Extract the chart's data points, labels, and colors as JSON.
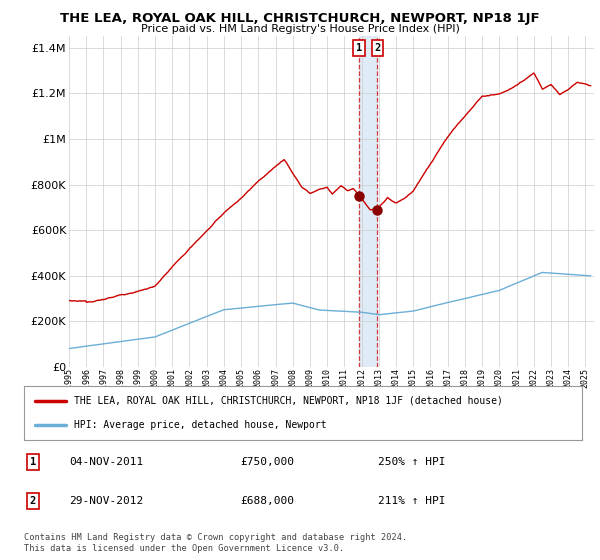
{
  "title": "THE LEA, ROYAL OAK HILL, CHRISTCHURCH, NEWPORT, NP18 1JF",
  "subtitle": "Price paid vs. HM Land Registry's House Price Index (HPI)",
  "legend_line1": "THE LEA, ROYAL OAK HILL, CHRISTCHURCH, NEWPORT, NP18 1JF (detached house)",
  "legend_line2": "HPI: Average price, detached house, Newport",
  "annotation1_date": "04-NOV-2011",
  "annotation1_price": "£750,000",
  "annotation1_hpi": "250% ↑ HPI",
  "annotation2_date": "29-NOV-2012",
  "annotation2_price": "£688,000",
  "annotation2_hpi": "211% ↑ HPI",
  "footnote1": "Contains HM Land Registry data © Crown copyright and database right 2024.",
  "footnote2": "This data is licensed under the Open Government Licence v3.0.",
  "hpi_color": "#6baed6",
  "price_color": "#cc0000",
  "marker_color": "#8b0000",
  "background_color": "#ffffff",
  "grid_color": "#cccccc",
  "highlight_color": "#dce9f5",
  "dashed_color": "#cc0000",
  "ylim": [
    0,
    1450000
  ],
  "yticks": [
    0,
    200000,
    400000,
    600000,
    800000,
    1000000,
    1200000,
    1400000
  ],
  "ytick_labels": [
    "£0",
    "£200K",
    "£400K",
    "£600K",
    "£800K",
    "£1M",
    "£1.2M",
    "£1.4M"
  ],
  "sale1_x": 2011.84,
  "sale1_y": 750000,
  "sale2_x": 2012.91,
  "sale2_y": 688000,
  "xmin": 1995.0,
  "xmax": 2025.5
}
